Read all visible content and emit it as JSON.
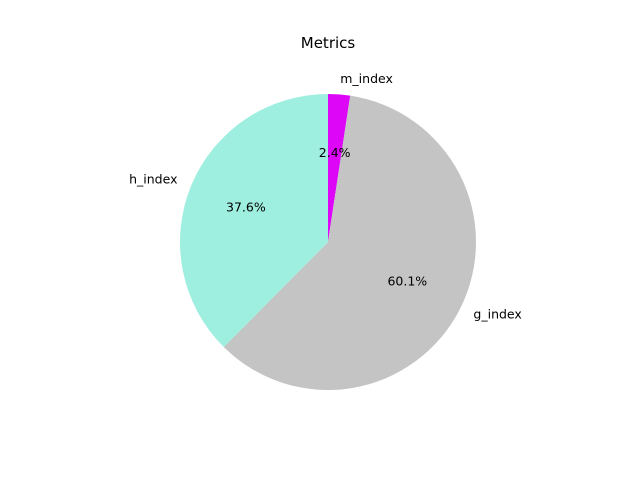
{
  "chart_data": {
    "type": "pie",
    "title": "Metrics",
    "categories": [
      "m_index",
      "g_index",
      "h_index"
    ],
    "values": [
      2.4,
      60.1,
      37.6
    ],
    "percent_labels": [
      "2.4%",
      "60.1%",
      "37.6%"
    ],
    "colors": [
      "#dd06f7",
      "#c4c4c4",
      "#9fefe0"
    ],
    "start_angle_deg": 90,
    "direction": "clockwise",
    "legend": false
  }
}
